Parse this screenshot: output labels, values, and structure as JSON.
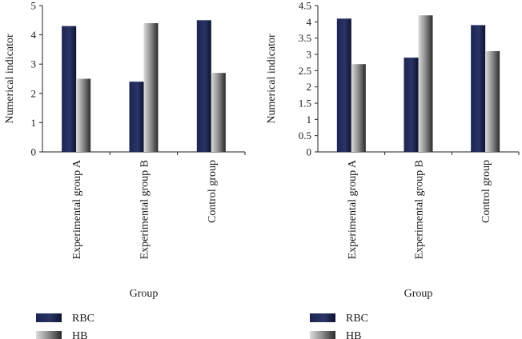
{
  "chart_data": [
    {
      "type": "bar",
      "categories": [
        "Experimental group A",
        "Experimental group B",
        "Control group"
      ],
      "series": [
        {
          "name": "RBC",
          "values": [
            4.3,
            2.4,
            4.5
          ]
        },
        {
          "name": "HB",
          "values": [
            2.5,
            4.4,
            2.7
          ]
        }
      ],
      "xlabel": "Group",
      "ylabel": "Numerical indicator",
      "ylim": [
        0,
        5
      ],
      "yticks": [
        "0",
        "1",
        "2",
        "3",
        "4",
        "5"
      ],
      "grid": false,
      "legend": "bottom-left"
    },
    {
      "type": "bar",
      "categories": [
        "Experimental group A",
        "Experimental group B",
        "Control group"
      ],
      "series": [
        {
          "name": "RBC",
          "values": [
            4.1,
            2.9,
            3.9
          ]
        },
        {
          "name": "HB",
          "values": [
            2.7,
            4.2,
            3.1
          ]
        }
      ],
      "xlabel": "Group",
      "ylabel": "Numerical indicator",
      "ylim": [
        0,
        4.5
      ],
      "yticks": [
        "0",
        "0.5",
        "1",
        "1.5",
        "2",
        "2.5",
        "3",
        "3.5",
        "4",
        "4.5"
      ],
      "grid": false,
      "legend": "bottom-left"
    }
  ],
  "colors": {
    "rbc": "#1c2550",
    "hb_light": "#d4d4d4",
    "hb_dark": "#2e2e2e",
    "axis": "#222222"
  }
}
